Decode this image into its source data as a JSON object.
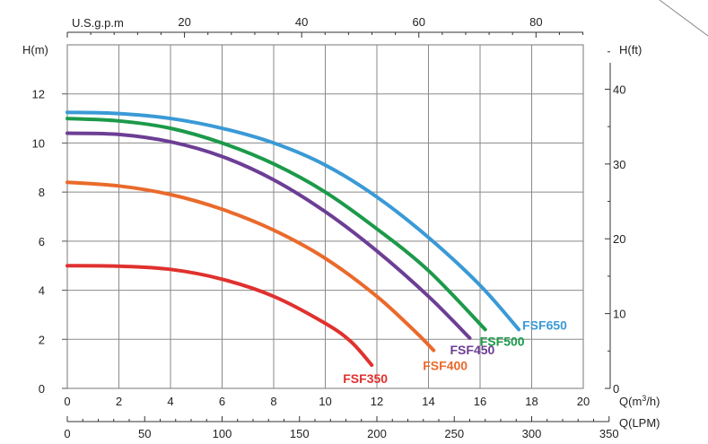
{
  "chart_data": {
    "type": "line",
    "x_axis_bottom": {
      "label": "Q(m³/h)",
      "label_main": "Q(m",
      "label_sup": "3",
      "label_end": "/h)",
      "range": [
        0,
        20
      ],
      "ticks": [
        0,
        2,
        4,
        6,
        8,
        10,
        12,
        14,
        16,
        18,
        20
      ]
    },
    "x_axis_lpm": {
      "label": "Q(LPM)",
      "range": [
        0,
        350
      ],
      "ticks": [
        0,
        50,
        100,
        150,
        200,
        250,
        300,
        350
      ]
    },
    "x_axis_top": {
      "label": "U.S.g.p.m",
      "ticks": [
        20,
        40,
        60,
        80
      ]
    },
    "y_axis_left": {
      "label": "H(m)",
      "range": [
        0,
        12
      ],
      "ticks": [
        0,
        2,
        4,
        6,
        8,
        10,
        12
      ]
    },
    "y_axis_right": {
      "label": "H(ft)",
      "ticks": [
        0,
        10,
        20,
        30,
        40
      ]
    },
    "grid": true,
    "series": [
      {
        "name": "FSF350",
        "color": "#e0312f",
        "points": [
          [
            0,
            5.0
          ],
          [
            2,
            4.98
          ],
          [
            4,
            4.85
          ],
          [
            6,
            4.45
          ],
          [
            8,
            3.75
          ],
          [
            10,
            2.65
          ],
          [
            11,
            1.9
          ],
          [
            11.8,
            0.95
          ]
        ]
      },
      {
        "name": "FSF400",
        "color": "#ea6a2b",
        "points": [
          [
            0,
            8.4
          ],
          [
            2,
            8.25
          ],
          [
            4,
            7.9
          ],
          [
            6,
            7.3
          ],
          [
            8,
            6.45
          ],
          [
            10,
            5.3
          ],
          [
            12,
            3.75
          ],
          [
            13.5,
            2.3
          ],
          [
            14.2,
            1.55
          ]
        ]
      },
      {
        "name": "FSF450",
        "color": "#6d3e95",
        "points": [
          [
            0,
            10.4
          ],
          [
            2,
            10.35
          ],
          [
            4,
            10.05
          ],
          [
            6,
            9.45
          ],
          [
            8,
            8.5
          ],
          [
            10,
            7.2
          ],
          [
            12,
            5.6
          ],
          [
            14,
            3.75
          ],
          [
            15.6,
            2.05
          ]
        ]
      },
      {
        "name": "FSF500",
        "color": "#1c9a4a",
        "points": [
          [
            0,
            11.0
          ],
          [
            2,
            10.9
          ],
          [
            4,
            10.6
          ],
          [
            6,
            10.0
          ],
          [
            8,
            9.15
          ],
          [
            10,
            8.0
          ],
          [
            12,
            6.5
          ],
          [
            14,
            4.8
          ],
          [
            16.2,
            2.4
          ]
        ]
      },
      {
        "name": "FSF650",
        "color": "#3a9ad6",
        "points": [
          [
            0,
            11.25
          ],
          [
            2,
            11.2
          ],
          [
            4,
            11.0
          ],
          [
            6,
            10.6
          ],
          [
            8,
            10.0
          ],
          [
            10,
            9.1
          ],
          [
            12,
            7.8
          ],
          [
            14,
            6.15
          ],
          [
            16,
            4.2
          ],
          [
            17.5,
            2.4
          ]
        ]
      }
    ]
  }
}
